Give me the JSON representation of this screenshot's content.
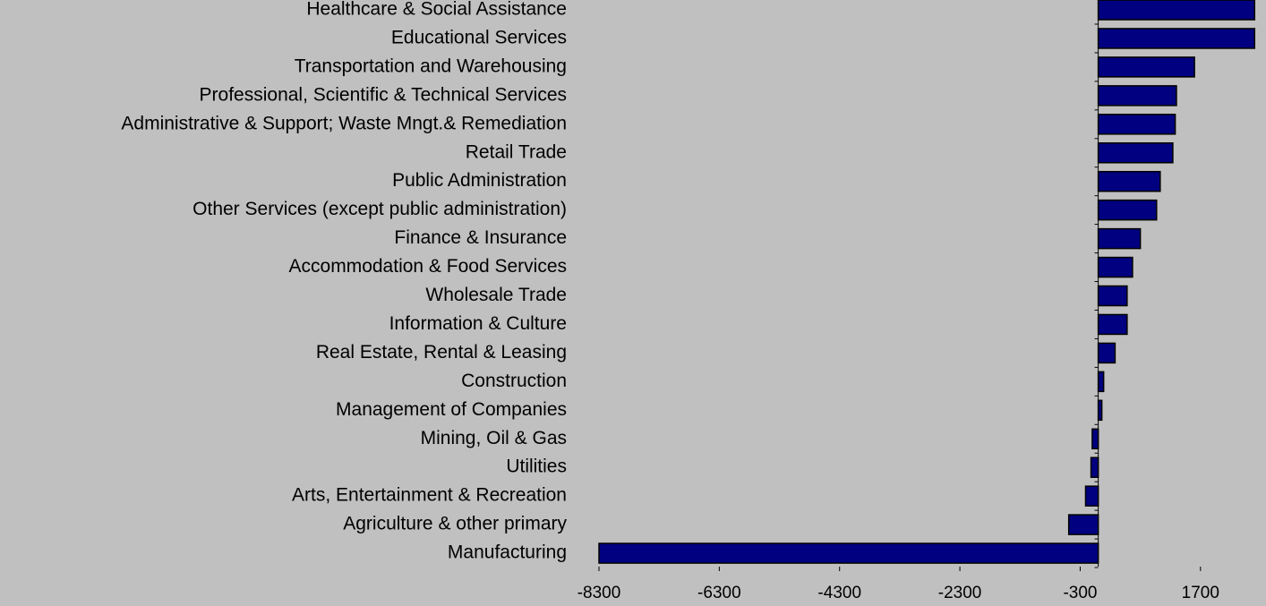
{
  "chart_data": {
    "type": "barh",
    "categories": [
      "Healthcare & Social Assistance",
      "Educational Services",
      "Transportation and Warehousing",
      "Professional, Scientific & Technical Services",
      "Administrative & Support; Waste Mngt.& Remediation",
      "Retail Trade",
      "Public Administration",
      "Other Services (except public administration)",
      "Finance & Insurance",
      "Accommodation & Food Services",
      "Wholesale Trade",
      "Information & Culture",
      "Real Estate, Rental & Leasing",
      "Construction",
      "Management of Companies",
      "Mining, Oil & Gas",
      "Utilities",
      "Arts, Entertainment & Recreation",
      "Agriculture & other primary",
      "Manufacturing"
    ],
    "values": [
      2600,
      2600,
      1600,
      1300,
      1280,
      1240,
      1030,
      970,
      700,
      570,
      480,
      480,
      280,
      90,
      60,
      -100,
      -120,
      -210,
      -490,
      -8300
    ],
    "color": "#000080",
    "xlim": [
      -8300,
      2700
    ],
    "xticks": [
      -8300,
      -6300,
      -4300,
      -2300,
      -300,
      1700
    ]
  }
}
